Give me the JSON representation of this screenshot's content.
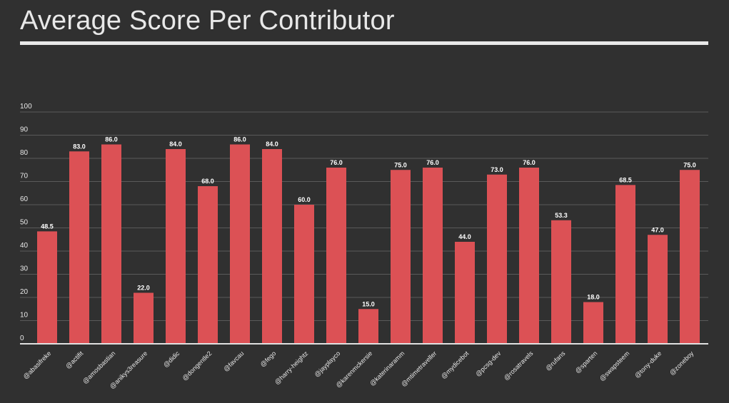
{
  "title": "Average Score Per Contributor",
  "colors": {
    "background": "#303030",
    "bar": "#dc5155",
    "text": "#e8e8e8",
    "grid": "#5a5a5a",
    "axis": "#e0e0e0"
  },
  "chart_data": {
    "type": "bar",
    "title": "Average Score Per Contributor",
    "xlabel": "",
    "ylabel": "",
    "ylim": [
      0,
      100
    ],
    "yticks": [
      0,
      10,
      20,
      30,
      40,
      50,
      60,
      70,
      80,
      90,
      100
    ],
    "grid": true,
    "legend": "none",
    "categories": [
      "@abasifreke",
      "@actifit",
      "@amosbastian",
      "@anikys3reasure",
      "@didic",
      "@dongentle2",
      "@favcau",
      "@fego",
      "@harry-heightz",
      "@jayplayco",
      "@karenmckersie",
      "@katerinaramm",
      "@mtimetraveller",
      "@mydicebot",
      "@pcsg-dev",
      "@rosatravels",
      "@rufans",
      "@sparten",
      "@swapsteem",
      "@tony-duke",
      "@zoneboy"
    ],
    "values": [
      48.5,
      83.0,
      86.0,
      22.0,
      84.0,
      68.0,
      86.0,
      84.0,
      60.0,
      76.0,
      15.0,
      75.0,
      76.0,
      44.0,
      73.0,
      76.0,
      53.3,
      18.0,
      68.5,
      47.0,
      75.0
    ],
    "value_labels": [
      "48.5",
      "83.0",
      "86.0",
      "22.0",
      "84.0",
      "68.0",
      "86.0",
      "84.0",
      "60.0",
      "76.0",
      "15.0",
      "75.0",
      "76.0",
      "44.0",
      "73.0",
      "76.0",
      "53.3",
      "18.0",
      "68.5",
      "47.0",
      "75.0"
    ]
  }
}
